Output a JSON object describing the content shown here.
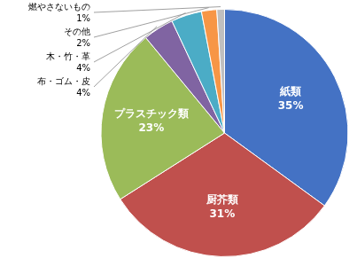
{
  "chart_data": {
    "type": "pie",
    "categories": [
      "紙類",
      "厨芥類",
      "プラスチック類",
      "布・ゴム・皮",
      "木・竹・革",
      "その他",
      "燃やさないもの"
    ],
    "values": [
      35,
      31,
      23,
      4,
      4,
      2,
      1
    ],
    "value_labels": [
      "35%",
      "31%",
      "23%",
      "4%",
      "4%",
      "2%",
      "1%"
    ],
    "colors": [
      "#4472c4",
      "#c0504d",
      "#9bbb59",
      "#8064a2",
      "#4bacc6",
      "#f79646",
      "#bfbfbf"
    ],
    "data_labels": true
  }
}
